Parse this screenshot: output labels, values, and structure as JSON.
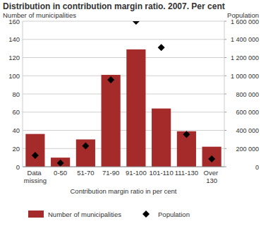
{
  "chart_data": {
    "type": "bar",
    "title": "Distribution in contribution margin ratio. 2007. Per cent",
    "y_label": "Number of municipalities",
    "y2_label": "Population",
    "x_label": "Contribution margin ratio in per cent",
    "categories": [
      "Data missing",
      "0-50",
      "51-70",
      "71-90",
      "91-100",
      "101-110",
      "111-130",
      "Over 130"
    ],
    "series": [
      {
        "name": "Number of municipalities",
        "type": "bar",
        "color": "#a52a2a",
        "values": [
          36,
          10,
          30,
          101,
          129,
          64,
          39,
          22
        ]
      },
      {
        "name": "Population",
        "type": "scatter",
        "marker": "diamond",
        "color": "#000000",
        "axis": "y2",
        "values": [
          125000,
          40000,
          230000,
          955000,
          1600000,
          1310000,
          355000,
          85000
        ]
      }
    ],
    "ylim": [
      0,
      160
    ],
    "yticks": [
      0,
      20,
      40,
      60,
      80,
      100,
      120,
      140,
      160
    ],
    "y2lim": [
      0,
      1600000
    ],
    "y2ticks": [
      0,
      {
        "value": 200000,
        "label": "200 000"
      },
      {
        "value": 400000,
        "label": "400 000"
      },
      {
        "value": 600000,
        "label": "600 000"
      },
      {
        "value": 800000,
        "label": "800 000"
      },
      {
        "value": 1000000,
        "label": "1 000 000"
      },
      {
        "value": 1200000,
        "label": "1 200 000"
      },
      {
        "value": 1400000,
        "label": "1 400 000"
      },
      {
        "value": 1600000,
        "label": "1 600 000"
      }
    ],
    "grid": true,
    "legend": "bottom"
  }
}
